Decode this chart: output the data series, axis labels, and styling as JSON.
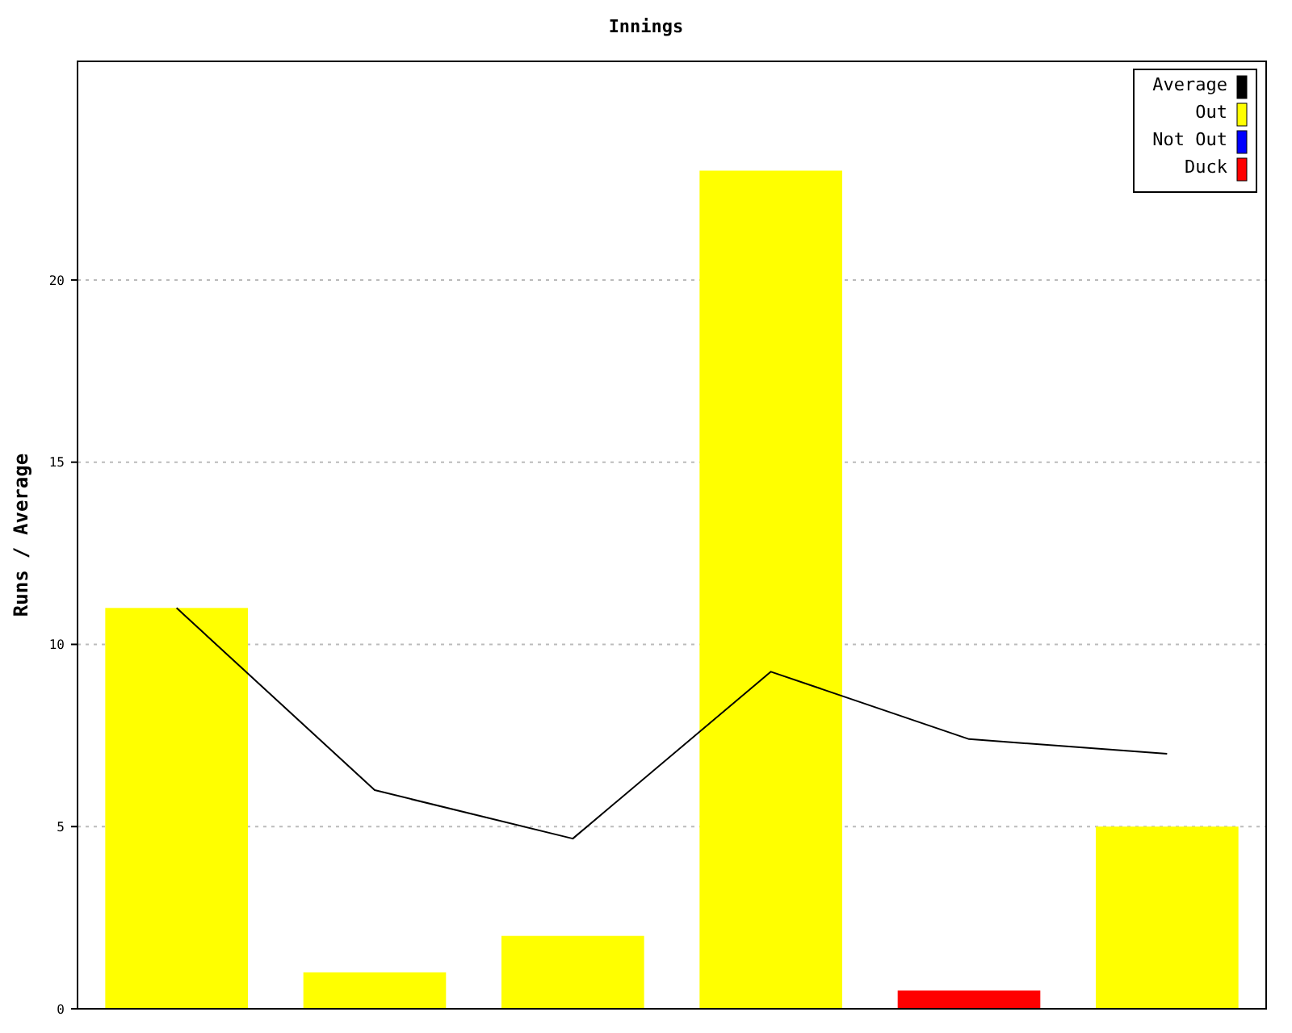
{
  "chart_data": {
    "type": "bar",
    "title": "Innings",
    "ylabel": "Runs / Average",
    "categories": [
      null,
      null,
      null,
      null,
      null,
      null
    ],
    "series": [
      {
        "name": "Average",
        "type": "line",
        "color": "#000000",
        "values": [
          11,
          6,
          4.67,
          9.25,
          7.4,
          7
        ]
      },
      {
        "name": "Out",
        "color": "#ffff00",
        "values": [
          11,
          1,
          2,
          23,
          null,
          5
        ]
      },
      {
        "name": "Not Out",
        "color": "#0000ff",
        "values": [
          null,
          null,
          null,
          null,
          null,
          null
        ]
      },
      {
        "name": "Duck",
        "color": "#ff0000",
        "values": [
          null,
          null,
          null,
          null,
          0.5,
          null
        ]
      }
    ],
    "ylim": [
      0,
      26
    ],
    "yticks": [
      0,
      5,
      10,
      15,
      20
    ],
    "grid": "y",
    "legend": "top right",
    "marker": "none",
    "line_style": "solid"
  }
}
